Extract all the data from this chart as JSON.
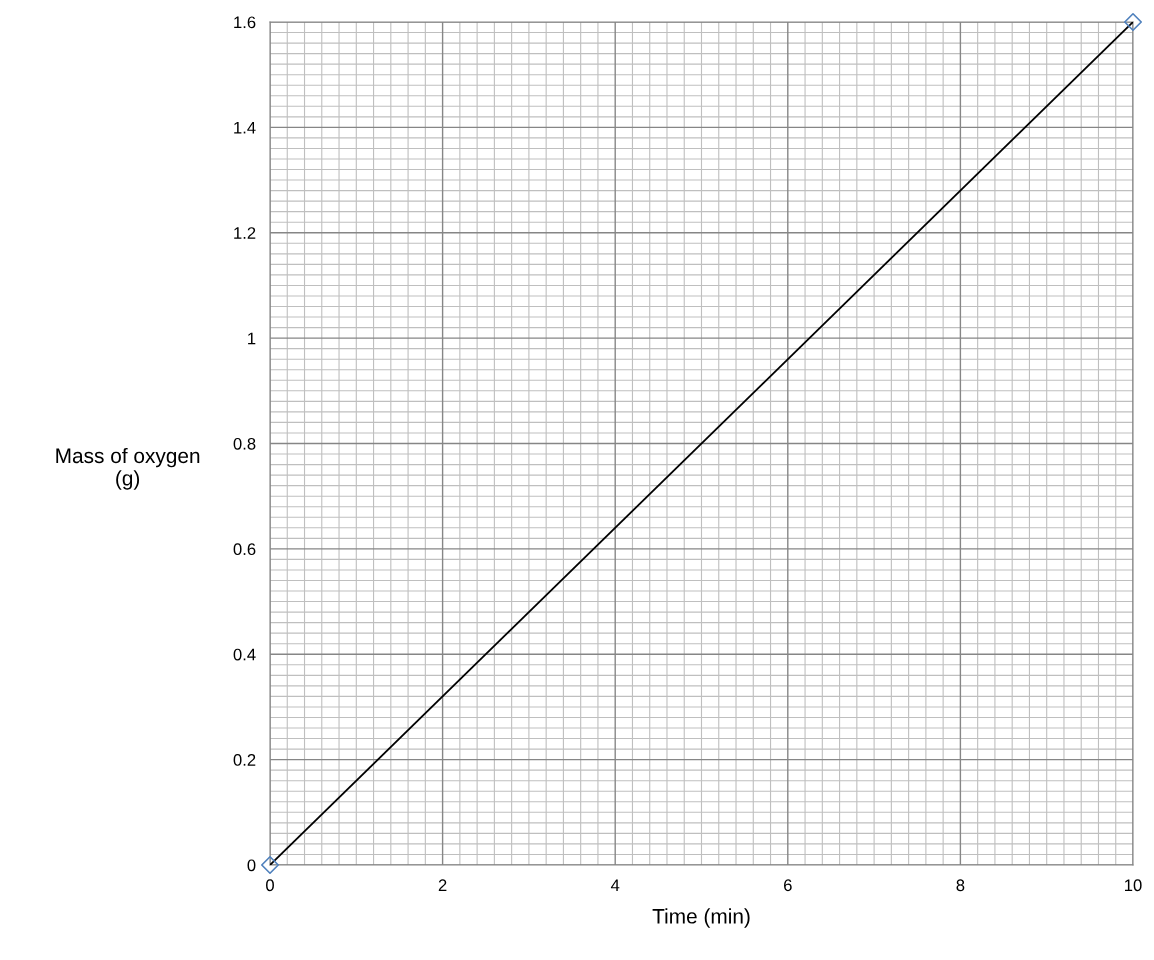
{
  "chart_data": {
    "type": "scatter",
    "xlabel": "Time (min)",
    "ylabel": "Mass of oxygen\n(g)",
    "x": [
      0,
      10
    ],
    "series": [
      {
        "color": "#4f81bd",
        "values": [
          0,
          1.6
        ],
        "marker": "diamond"
      },
      {
        "type": "line",
        "color": "#000000",
        "x": [
          0,
          10
        ],
        "values": [
          0,
          1.6
        ],
        "marker": "none",
        "line_style": "solid"
      }
    ],
    "xlim": [
      0,
      10
    ],
    "xticks": [
      0,
      2,
      4,
      6,
      8,
      10
    ],
    "ylim": [
      0,
      1.6
    ],
    "yticks": [
      0,
      0.2,
      0.4,
      0.6,
      0.8,
      1,
      1.2,
      1.4,
      1.6
    ],
    "grid": true,
    "legend": false
  }
}
